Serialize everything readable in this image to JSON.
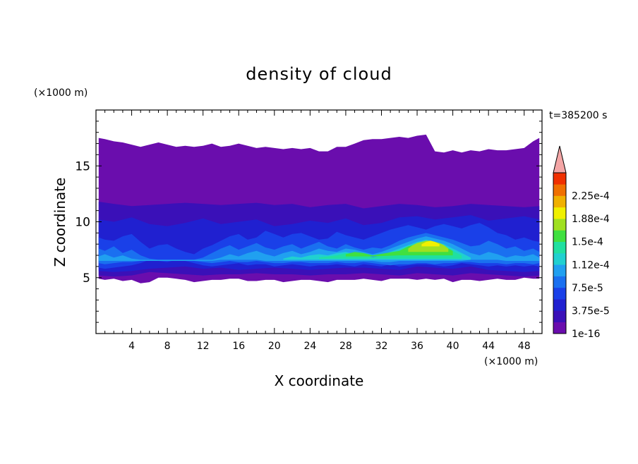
{
  "chart_data": {
    "type": "heatmap",
    "title": "density of cloud",
    "xlabel": "X coordinate",
    "ylabel": "Z coordinate",
    "x_unit": "(×1000 m)",
    "y_unit": "(×1000 m)",
    "time_label": "t=385200 s",
    "xlim": [
      0,
      50
    ],
    "ylim": [
      0,
      20
    ],
    "x_ticks": [
      4,
      8,
      12,
      16,
      20,
      24,
      28,
      32,
      36,
      40,
      44,
      48
    ],
    "y_ticks": [
      5,
      10,
      15
    ],
    "colorbar": {
      "labels": [
        "1e-16",
        "3.75e-5",
        "7.5e-5",
        "1.12e-4",
        "1.5e-4",
        "1.88e-4",
        "2.25e-4"
      ],
      "levels": [
        "1e-16",
        "1.875e-5",
        "3.75e-5",
        "5.625e-5",
        "7.5e-5",
        "9.375e-5",
        "1.12e-4",
        "1.31e-4",
        "1.5e-4",
        "1.69e-4",
        "1.88e-4",
        "2.06e-4",
        "2.25e-4",
        "2.44e-4"
      ],
      "colors": [
        "#6a0dad",
        "#3a10b8",
        "#2020d0",
        "#1a40e8",
        "#1a70f0",
        "#20a0f0",
        "#20d0d0",
        "#20e0a0",
        "#40e040",
        "#a0e020",
        "#f0f000",
        "#f0b000",
        "#f07000",
        "#f03000"
      ],
      "extend_color": "#f4a6a6"
    },
    "layers": [
      {
        "level_index": 0,
        "x": [
          0.3,
          1,
          2,
          3,
          4,
          5,
          6,
          7,
          8,
          9,
          10,
          11,
          12,
          13,
          14,
          15,
          16,
          17,
          18,
          19,
          20,
          21,
          22,
          23,
          24,
          25,
          26,
          27,
          28,
          29,
          30,
          31,
          32,
          33,
          34,
          35,
          36,
          37,
          38,
          39,
          40,
          41,
          42,
          43,
          44,
          45,
          46,
          47,
          48,
          49,
          49.7
        ],
        "top": [
          17.5,
          17.4,
          17.2,
          17.1,
          16.9,
          16.7,
          16.9,
          17.1,
          16.9,
          16.7,
          16.8,
          16.7,
          16.8,
          17.0,
          16.7,
          16.8,
          17.0,
          16.8,
          16.6,
          16.7,
          16.6,
          16.5,
          16.6,
          16.5,
          16.6,
          16.3,
          16.3,
          16.7,
          16.7,
          17.0,
          17.3,
          17.4,
          17.4,
          17.5,
          17.6,
          17.5,
          17.7,
          17.8,
          16.3,
          16.2,
          16.4,
          16.2,
          16.4,
          16.3,
          16.5,
          16.4,
          16.4,
          16.5,
          16.6,
          17.2,
          17.5
        ],
        "bottom": [
          4.9,
          4.8,
          4.9,
          4.7,
          4.8,
          4.5,
          4.6,
          5.0,
          5.0,
          4.9,
          4.8,
          4.6,
          4.7,
          4.8,
          4.8,
          4.9,
          4.9,
          4.7,
          4.7,
          4.8,
          4.8,
          4.6,
          4.7,
          4.8,
          4.8,
          4.7,
          4.6,
          4.8,
          4.8,
          4.8,
          4.9,
          4.8,
          4.7,
          4.9,
          4.9,
          4.9,
          4.8,
          4.9,
          4.8,
          4.9,
          4.6,
          4.8,
          4.8,
          4.7,
          4.8,
          4.9,
          4.8,
          4.8,
          5.0,
          4.9,
          4.9
        ]
      },
      {
        "level_index": 1,
        "x": [
          0.3,
          2,
          4,
          6,
          8,
          10,
          12,
          14,
          16,
          18,
          20,
          22,
          24,
          26,
          28,
          30,
          32,
          34,
          36,
          38,
          40,
          42,
          44,
          46,
          48,
          49.7
        ],
        "top": [
          11.8,
          11.6,
          11.4,
          11.5,
          11.6,
          11.7,
          11.6,
          11.5,
          11.6,
          11.7,
          11.5,
          11.6,
          11.3,
          11.5,
          11.6,
          11.2,
          11.4,
          11.6,
          11.5,
          11.3,
          11.4,
          11.6,
          11.5,
          11.4,
          11.3,
          11.4
        ],
        "bottom": [
          5.2,
          5.1,
          5.2,
          5.5,
          5.4,
          5.3,
          5.2,
          5.3,
          5.3,
          5.4,
          5.3,
          5.3,
          5.2,
          5.3,
          5.3,
          5.4,
          5.3,
          5.2,
          5.4,
          5.3,
          5.2,
          5.4,
          5.3,
          5.2,
          5.1,
          5.2
        ]
      },
      {
        "level_index": 2,
        "x": [
          0.3,
          2,
          4,
          6,
          8,
          10,
          12,
          14,
          16,
          18,
          20,
          22,
          24,
          26,
          28,
          30,
          32,
          34,
          36,
          38,
          40,
          42,
          44,
          46,
          48,
          49.7
        ],
        "top": [
          10.2,
          10.0,
          10.4,
          9.8,
          9.6,
          9.9,
          10.3,
          9.8,
          10.0,
          10.2,
          9.6,
          9.8,
          10.1,
          9.9,
          10.3,
          9.7,
          9.9,
          10.4,
          10.5,
          10.2,
          10.4,
          10.6,
          10.1,
          10.3,
          10.5,
          10.2
        ],
        "bottom": [
          5.6,
          5.5,
          5.6,
          5.8,
          5.9,
          6.0,
          5.8,
          5.9,
          5.7,
          5.8,
          5.9,
          5.8,
          5.7,
          5.8,
          5.9,
          5.9,
          5.8,
          5.7,
          6.0,
          5.9,
          5.8,
          6.0,
          5.7,
          5.6,
          5.5,
          5.6
        ]
      },
      {
        "level_index": 3,
        "x": [
          0.3,
          1,
          2,
          3,
          4,
          5,
          6,
          7,
          8,
          9,
          10,
          11,
          12,
          13,
          14,
          15,
          16,
          17,
          18,
          19,
          20,
          21,
          22,
          23,
          24,
          25,
          26,
          27,
          28,
          29,
          30,
          31,
          32,
          33,
          34,
          35,
          36,
          37,
          38,
          39,
          40,
          41,
          42,
          43,
          44,
          45,
          46,
          47,
          48,
          49,
          49.7
        ],
        "top": [
          8.6,
          8.4,
          8.3,
          8.7,
          8.9,
          8.2,
          7.6,
          7.9,
          8.0,
          7.6,
          7.3,
          7.1,
          7.6,
          7.9,
          8.3,
          8.7,
          8.9,
          8.4,
          8.6,
          9.2,
          8.9,
          8.6,
          8.9,
          9.0,
          8.7,
          8.4,
          8.5,
          9.1,
          8.8,
          8.6,
          8.4,
          8.7,
          9.0,
          9.3,
          9.5,
          9.7,
          9.5,
          9.3,
          9.6,
          9.8,
          9.6,
          9.4,
          9.7,
          9.9,
          9.5,
          9.0,
          8.8,
          8.4,
          8.6,
          8.3,
          8.2
        ],
        "bottom": [
          5.9,
          5.8,
          5.9,
          6.0,
          6.1,
          6.3,
          6.6,
          6.5,
          6.4,
          6.6,
          6.5,
          6.3,
          6.1,
          6.0,
          6.1,
          6.2,
          6.3,
          6.1,
          6.2,
          6.2,
          6.0,
          6.1,
          6.2,
          6.1,
          6.0,
          6.1,
          6.1,
          6.2,
          6.1,
          6.0,
          6.2,
          6.1,
          6.0,
          6.2,
          6.0,
          6.1,
          6.2,
          6.2,
          6.1,
          6.0,
          6.1,
          6.3,
          6.2,
          6.1,
          6.0,
          6.1,
          6.0,
          6.1,
          6.0,
          6.1,
          6.0
        ]
      },
      {
        "level_index": 4,
        "x": [
          0.3,
          1,
          2,
          3,
          4,
          5,
          6,
          7,
          8,
          10,
          11,
          12,
          13,
          14,
          15,
          16,
          17,
          18,
          19,
          20,
          21,
          22,
          23,
          24,
          25,
          26,
          27,
          28,
          29,
          30,
          31,
          32,
          33,
          34,
          35,
          36,
          37,
          38,
          39,
          40,
          41,
          42,
          43,
          44,
          45,
          46,
          47,
          48,
          49,
          49.7
        ],
        "top": [
          7.6,
          7.4,
          7.8,
          7.2,
          7.5,
          7.0,
          6.7,
          6.6,
          6.5,
          6.5,
          6.6,
          6.8,
          7.2,
          7.6,
          7.9,
          7.5,
          7.8,
          8.1,
          7.7,
          7.5,
          7.8,
          8.0,
          7.6,
          7.9,
          8.2,
          7.8,
          7.6,
          8.0,
          7.7,
          7.5,
          7.7,
          7.6,
          7.9,
          8.3,
          8.6,
          8.8,
          9.0,
          8.8,
          8.6,
          8.4,
          8.1,
          7.8,
          7.9,
          8.3,
          8.0,
          7.6,
          7.8,
          7.4,
          7.6,
          7.3
        ],
        "bottom": [
          6.3,
          6.2,
          6.3,
          6.4,
          6.4,
          6.5,
          6.6,
          6.6,
          6.5,
          6.5,
          6.5,
          6.4,
          6.3,
          6.4,
          6.5,
          6.4,
          6.4,
          6.5,
          6.4,
          6.3,
          6.3,
          6.4,
          6.4,
          6.3,
          6.3,
          6.3,
          6.4,
          6.3,
          6.3,
          6.4,
          6.3,
          6.2,
          6.1,
          6.2,
          6.2,
          6.3,
          6.3,
          6.2,
          6.3,
          6.3,
          6.4,
          6.4,
          6.3,
          6.3,
          6.3,
          6.2,
          6.3,
          6.3,
          6.2,
          6.3
        ]
      },
      {
        "level_index": 5,
        "x": [
          0.3,
          1,
          2,
          3,
          4,
          5,
          13,
          14,
          15,
          16,
          17,
          18,
          19,
          20,
          21,
          22,
          23,
          24,
          25,
          26,
          27,
          28,
          29,
          30,
          31,
          32,
          33,
          34,
          35,
          36,
          37,
          38,
          39,
          40,
          41,
          42,
          43,
          44,
          45,
          46,
          47,
          48,
          49,
          49.7
        ],
        "top": [
          6.9,
          7.1,
          6.8,
          7.0,
          6.7,
          6.6,
          6.6,
          6.8,
          7.1,
          6.9,
          7.2,
          7.4,
          7.1,
          6.9,
          7.2,
          7.4,
          7.1,
          7.3,
          7.6,
          7.4,
          7.3,
          7.6,
          7.5,
          7.3,
          7.1,
          7.3,
          7.6,
          7.9,
          8.2,
          8.5,
          8.7,
          8.5,
          8.3,
          8.0,
          7.6,
          7.2,
          7.0,
          7.3,
          7.1,
          6.8,
          7.0,
          6.9,
          7.1,
          6.8
        ],
        "bottom": [
          6.5,
          6.5,
          6.5,
          6.5,
          6.5,
          6.5,
          6.5,
          6.6,
          6.6,
          6.6,
          6.6,
          6.6,
          6.5,
          6.5,
          6.5,
          6.5,
          6.5,
          6.5,
          6.5,
          6.5,
          6.5,
          6.5,
          6.5,
          6.5,
          6.5,
          6.4,
          6.4,
          6.5,
          6.5,
          6.5,
          6.5,
          6.5,
          6.5,
          6.5,
          6.5,
          6.6,
          6.6,
          6.6,
          6.6,
          6.5,
          6.5,
          6.5,
          6.5,
          6.5
        ]
      },
      {
        "level_index": 6,
        "x": [
          21,
          22,
          23,
          24,
          25,
          26,
          27,
          28,
          29,
          30,
          31,
          32,
          33,
          34,
          35,
          36,
          37,
          38,
          39,
          40,
          41,
          42
        ],
        "top": [
          6.7,
          6.9,
          6.8,
          7.0,
          7.1,
          7.0,
          7.2,
          7.3,
          7.1,
          7.2,
          6.8,
          7.0,
          7.3,
          7.6,
          7.9,
          8.2,
          8.4,
          8.2,
          8.0,
          7.6,
          7.2,
          6.8
        ],
        "bottom": [
          6.6,
          6.6,
          6.6,
          6.6,
          6.6,
          6.6,
          6.6,
          6.6,
          6.6,
          6.6,
          6.6,
          6.6,
          6.6,
          6.6,
          6.6,
          6.6,
          6.6,
          6.6,
          6.6,
          6.6,
          6.6,
          6.6
        ]
      },
      {
        "level_index": 7,
        "x": [
          25,
          26,
          27,
          28,
          29,
          30,
          31,
          33,
          34,
          35,
          36,
          37,
          38,
          39,
          40,
          41
        ],
        "top": [
          6.8,
          6.9,
          7.0,
          7.2,
          7.1,
          7.1,
          6.8,
          7.1,
          7.4,
          7.7,
          8.0,
          8.2,
          8.0,
          7.8,
          7.4,
          7.0
        ],
        "bottom": [
          6.7,
          6.7,
          6.7,
          6.7,
          6.7,
          6.7,
          6.7,
          6.7,
          6.7,
          6.7,
          6.7,
          6.7,
          6.7,
          6.7,
          6.7,
          6.7
        ]
      },
      {
        "level_index": 8,
        "x": [
          28,
          29,
          30,
          31,
          34,
          35,
          36,
          37,
          38,
          39,
          40
        ],
        "top": [
          7.1,
          7.3,
          7.2,
          7.0,
          7.4,
          7.8,
          8.0,
          8.1,
          8.0,
          7.8,
          7.4
        ],
        "bottom": [
          6.9,
          6.9,
          6.9,
          6.9,
          7.0,
          7.0,
          7.0,
          7.0,
          7.0,
          7.0,
          7.0
        ]
      },
      {
        "level_index": 9,
        "x": [
          35,
          35.5,
          36,
          36.5,
          37,
          37.5,
          38,
          38.5,
          39,
          39.5
        ],
        "top": [
          7.6,
          7.9,
          8.1,
          8.2,
          8.3,
          8.3,
          8.2,
          8.1,
          7.9,
          7.6
        ],
        "bottom": [
          7.3,
          7.3,
          7.3,
          7.3,
          7.3,
          7.3,
          7.3,
          7.3,
          7.3,
          7.3
        ]
      },
      {
        "level_index": 10,
        "x": [
          36.5,
          37,
          37.5,
          38,
          38.5
        ],
        "top": [
          8.0,
          8.2,
          8.3,
          8.2,
          8.0
        ],
        "bottom": [
          7.8,
          7.8,
          7.8,
          7.8,
          7.8
        ]
      }
    ]
  }
}
